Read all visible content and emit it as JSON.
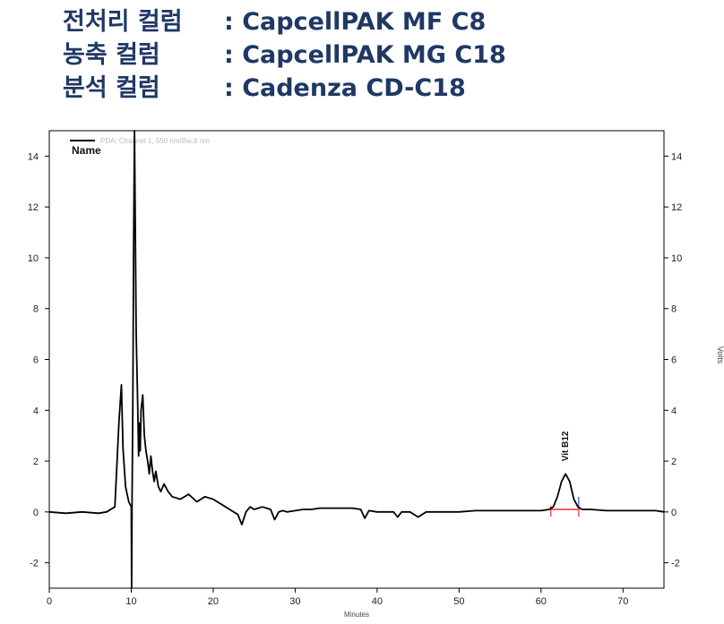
{
  "header": {
    "lines": [
      {
        "label": "전처리 컬럼",
        "value": ": CapcellPAK MF C8"
      },
      {
        "label": "농축 컬럼",
        "value": ": CapcellPAK MG C18"
      },
      {
        "label": "분석 컬럼",
        "value": ": Cadenza CD-C18"
      }
    ]
  },
  "chart_data": {
    "type": "line",
    "legend": {
      "entry": "PDA: Channel 1, 550 nm/Bw:8 nm",
      "name_label": "Name",
      "placement": "top-left"
    },
    "xlabel": "Minutes",
    "ylabel_right": "Volts",
    "xlim": [
      0,
      75
    ],
    "ylim": [
      -3,
      15
    ],
    "xticks": [
      0,
      10,
      20,
      30,
      40,
      50,
      60,
      70
    ],
    "yticks": [
      -2,
      0,
      2,
      4,
      6,
      8,
      10,
      12,
      14
    ],
    "grid": false,
    "colors": {
      "trace": "#000000",
      "baseline": "#e03030",
      "marker_right": "#3050d0",
      "frame": "#000000"
    },
    "series": [
      {
        "x": [
          0,
          2,
          4,
          6,
          7,
          8,
          8.5,
          8.8,
          9.0,
          9.3,
          9.7,
          10.0,
          10.05,
          10.1,
          10.2,
          10.3,
          10.4,
          10.6,
          10.8,
          10.9,
          11.0,
          11.1,
          11.2,
          11.4,
          11.6,
          11.8,
          12.0,
          12.2,
          12.4,
          12.6,
          12.8,
          13.0,
          13.3,
          13.6,
          14.0,
          14.5,
          15,
          16,
          17,
          18,
          19,
          20,
          21,
          22,
          23,
          23.5,
          24,
          24.5,
          25,
          26,
          27,
          27.5,
          28,
          28.5,
          29,
          30,
          31,
          32,
          33,
          34,
          35,
          36,
          37,
          38,
          38.5,
          39,
          40,
          41,
          42,
          42.5,
          43,
          44,
          45,
          46,
          47,
          48,
          50,
          52,
          54,
          56,
          58,
          60,
          61,
          61.5,
          62,
          62.5,
          63,
          63.5,
          64,
          64.5,
          65,
          66,
          68,
          70,
          72,
          74,
          75
        ],
        "y": [
          0,
          -0.05,
          0,
          -0.05,
          0,
          0.2,
          3.5,
          5.0,
          2.5,
          1.0,
          0.4,
          0.2,
          -3.0,
          0.5,
          4.5,
          10.9,
          15.0,
          7.0,
          4.0,
          2.2,
          3.5,
          2.4,
          4.0,
          4.6,
          3.0,
          2.4,
          2.0,
          1.5,
          2.2,
          1.6,
          1.2,
          1.6,
          1.0,
          0.8,
          1.1,
          0.8,
          0.6,
          0.5,
          0.7,
          0.4,
          0.6,
          0.5,
          0.3,
          0.1,
          -0.1,
          -0.5,
          0.0,
          0.2,
          0.1,
          0.2,
          0.1,
          -0.3,
          0.0,
          0.05,
          0.0,
          0.05,
          0.1,
          0.1,
          0.15,
          0.15,
          0.15,
          0.15,
          0.15,
          0.1,
          -0.25,
          0.05,
          0.0,
          0.0,
          0.0,
          -0.2,
          0.0,
          0.0,
          -0.2,
          0.0,
          0.0,
          0.0,
          0.0,
          0.05,
          0.05,
          0.05,
          0.05,
          0.05,
          0.1,
          0.2,
          0.6,
          1.2,
          1.5,
          1.2,
          0.5,
          0.2,
          0.1,
          0.1,
          0.05,
          0.05,
          0.05,
          0.05,
          0.0
        ]
      }
    ],
    "annotations": [
      {
        "text": "Vit B12",
        "x": 63,
        "y": 1.5
      }
    ],
    "integration_baseline": {
      "x_start": 61.2,
      "x_end": 64.6,
      "y": 0.1
    }
  }
}
